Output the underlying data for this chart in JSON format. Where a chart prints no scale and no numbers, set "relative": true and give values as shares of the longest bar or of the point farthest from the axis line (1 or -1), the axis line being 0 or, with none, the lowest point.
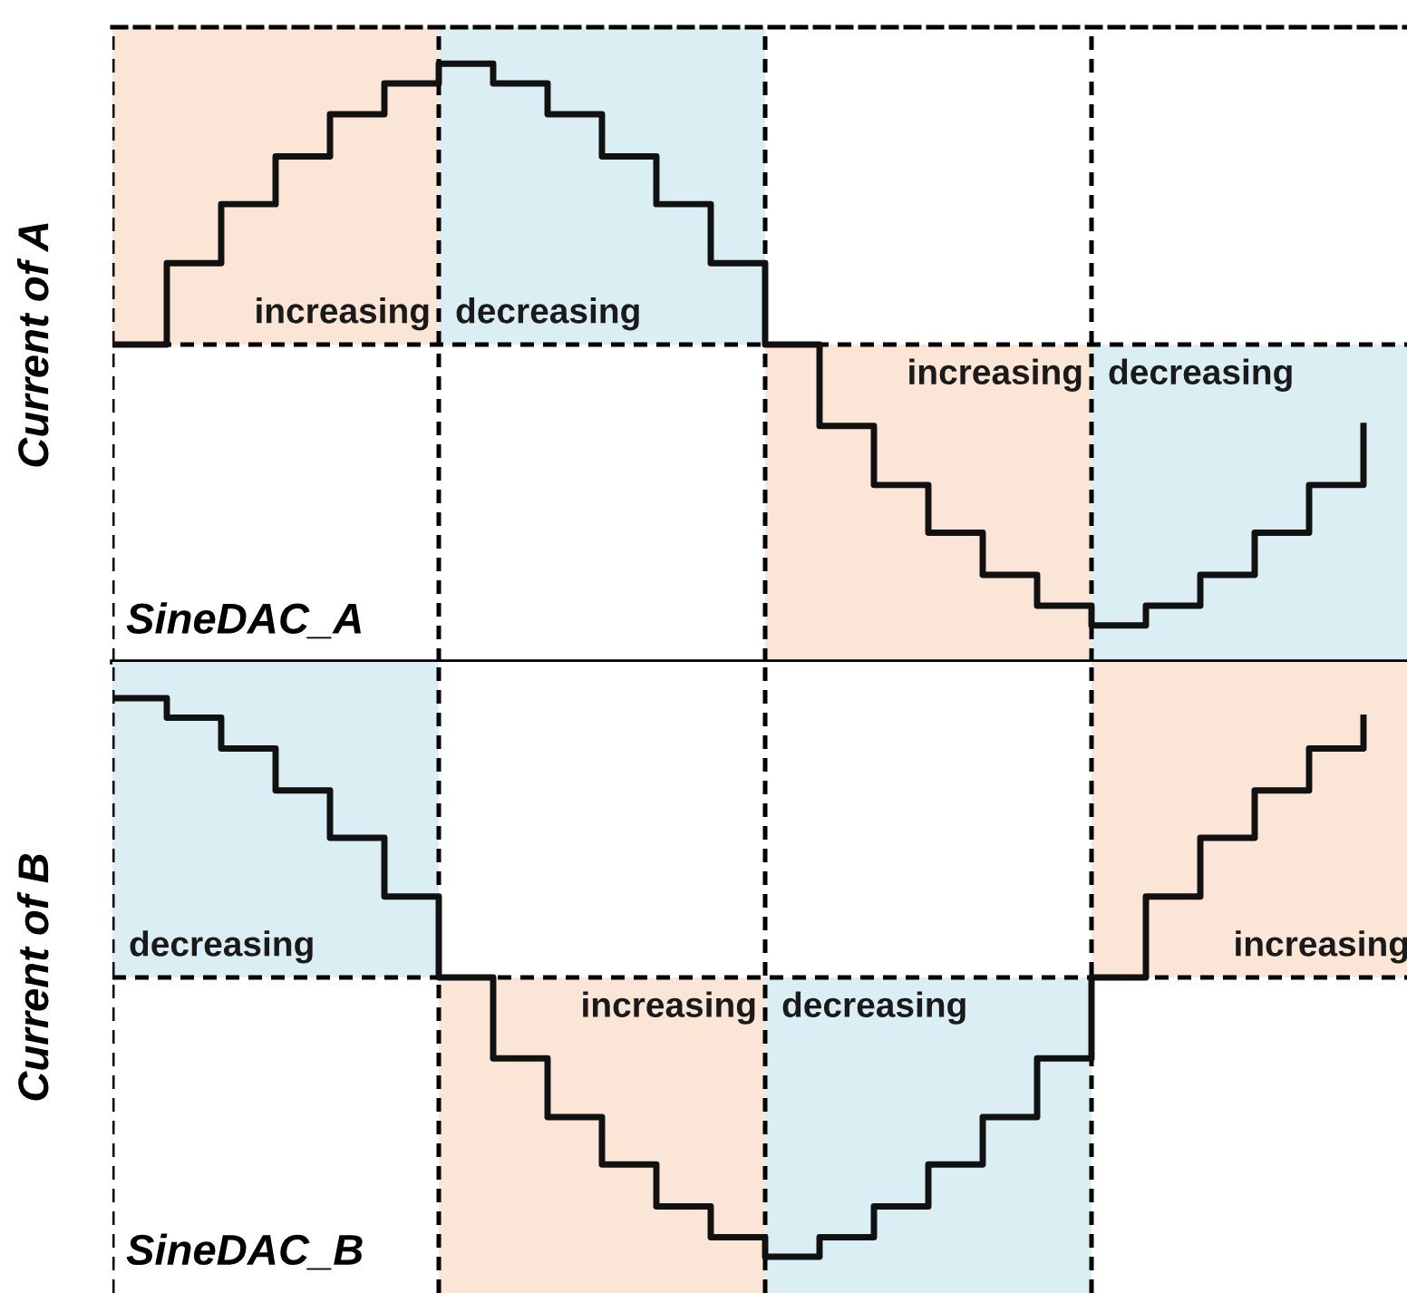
{
  "chart_data": [
    {
      "type": "step",
      "relative": true,
      "ylabel": "Current of A",
      "annotations": [
        "increasing",
        "decreasing",
        "increasing",
        "decreasing",
        "SineDAC_A"
      ],
      "grid": "x",
      "categories": [
        null,
        null,
        null,
        null,
        null,
        null,
        null,
        null,
        null,
        null,
        null,
        null,
        null,
        null,
        null,
        null,
        null,
        null,
        null,
        null,
        null,
        null,
        null,
        null
      ],
      "series": [
        {
          "color": "#111111",
          "values": [
            0,
            0.29,
            0.5,
            0.67,
            0.82,
            0.93,
            1,
            0.93,
            0.82,
            0.67,
            0.5,
            0.29,
            0,
            -0.29,
            -0.5,
            -0.67,
            -0.82,
            -0.93,
            -1,
            -0.93,
            -0.82,
            -0.67,
            -0.5,
            -0.29
          ]
        }
      ],
      "ref_lines": [
        {
          "axis": "y",
          "value": 0,
          "line_style": "dashed",
          "color": "#000000"
        }
      ]
    },
    {
      "type": "step",
      "relative": true,
      "ylabel": "Current of B",
      "annotations": [
        "decreasing",
        "increasing",
        "decreasing",
        "increasing",
        "SineDAC_B"
      ],
      "grid": "x",
      "categories": [
        null,
        null,
        null,
        null,
        null,
        null,
        null,
        null,
        null,
        null,
        null,
        null,
        null,
        null,
        null,
        null,
        null,
        null,
        null,
        null,
        null,
        null,
        null,
        null
      ],
      "series": [
        {
          "color": "#111111",
          "values": [
            1,
            0.93,
            0.82,
            0.67,
            0.5,
            0.29,
            0,
            -0.29,
            -0.5,
            -0.67,
            -0.82,
            -0.93,
            -1,
            -0.93,
            -0.82,
            -0.67,
            -0.5,
            -0.29,
            0,
            0.29,
            0.5,
            0.67,
            0.82,
            0.93
          ]
        }
      ],
      "ref_lines": [
        {
          "axis": "y",
          "value": 0,
          "line_style": "dashed",
          "color": "#000000"
        }
      ]
    }
  ]
}
